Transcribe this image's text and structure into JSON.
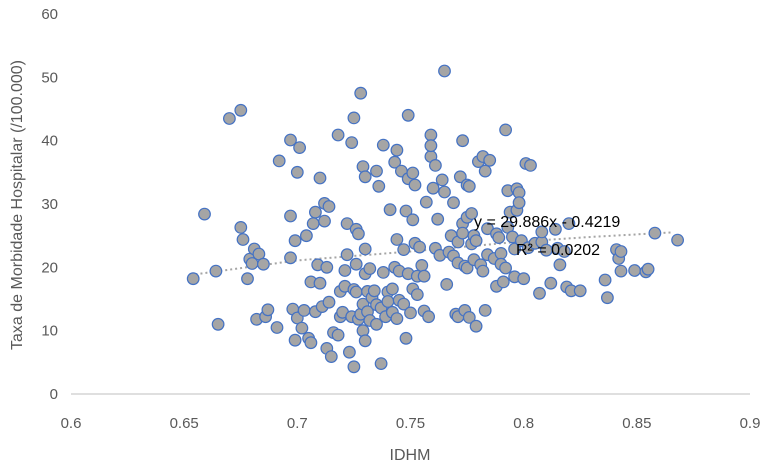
{
  "chart_data": {
    "type": "scatter",
    "xlabel": "IDHM",
    "ylabel": "Taxa de Morbidade Hospitalar (/100.000)",
    "xlim": [
      0.6,
      0.9
    ],
    "ylim": [
      0,
      60
    ],
    "x_ticks": [
      "0.6",
      "0.65",
      "0.7",
      "0.75",
      "0.8",
      "0.85",
      "0.9"
    ],
    "y_ticks": [
      "0",
      "10",
      "20",
      "30",
      "40",
      "50",
      "60"
    ],
    "grid": false,
    "legend": "none",
    "trendline": {
      "type": "polynomial-2",
      "label_equation": "y = 29.886x - 0.4219",
      "label_r2": "R² = 0.0202",
      "points": [
        [
          0.655,
          18.9
        ],
        [
          0.7,
          21.1
        ],
        [
          0.75,
          22.5
        ],
        [
          0.8,
          24.1
        ],
        [
          0.83,
          24.8
        ],
        [
          0.865,
          25.5
        ]
      ]
    },
    "colors": {
      "marker_fill": "#A5A5A5",
      "marker_edge": "#4472C4",
      "axis": "#BFBFBF",
      "text": "#595959",
      "trend": "#A5A5A5"
    },
    "points": [
      [
        0.654,
        18.2
      ],
      [
        0.659,
        28.4
      ],
      [
        0.664,
        19.4
      ],
      [
        0.665,
        11.0
      ],
      [
        0.67,
        43.5
      ],
      [
        0.675,
        44.8
      ],
      [
        0.675,
        26.3
      ],
      [
        0.676,
        24.4
      ],
      [
        0.678,
        18.2
      ],
      [
        0.679,
        21.3
      ],
      [
        0.68,
        20.6
      ],
      [
        0.681,
        22.9
      ],
      [
        0.682,
        11.8
      ],
      [
        0.683,
        22.1
      ],
      [
        0.685,
        20.5
      ],
      [
        0.686,
        12.2
      ],
      [
        0.687,
        13.3
      ],
      [
        0.691,
        10.5
      ],
      [
        0.692,
        36.8
      ],
      [
        0.697,
        40.1
      ],
      [
        0.697,
        28.1
      ],
      [
        0.697,
        21.5
      ],
      [
        0.698,
        13.4
      ],
      [
        0.699,
        24.2
      ],
      [
        0.699,
        8.5
      ],
      [
        0.7,
        35.0
      ],
      [
        0.7,
        12.0
      ],
      [
        0.701,
        38.9
      ],
      [
        0.702,
        10.4
      ],
      [
        0.703,
        13.2
      ],
      [
        0.704,
        25.0
      ],
      [
        0.705,
        8.8
      ],
      [
        0.706,
        8.1
      ],
      [
        0.706,
        17.7
      ],
      [
        0.707,
        26.9
      ],
      [
        0.708,
        28.7
      ],
      [
        0.708,
        13.0
      ],
      [
        0.709,
        20.4
      ],
      [
        0.71,
        34.1
      ],
      [
        0.71,
        17.5
      ],
      [
        0.711,
        13.8
      ],
      [
        0.712,
        30.1
      ],
      [
        0.712,
        27.3
      ],
      [
        0.713,
        20.0
      ],
      [
        0.713,
        7.2
      ],
      [
        0.714,
        29.6
      ],
      [
        0.714,
        14.5
      ],
      [
        0.715,
        5.9
      ],
      [
        0.716,
        9.7
      ],
      [
        0.718,
        40.9
      ],
      [
        0.718,
        9.3
      ],
      [
        0.719,
        12.2
      ],
      [
        0.719,
        16.2
      ],
      [
        0.72,
        12.9
      ],
      [
        0.721,
        19.5
      ],
      [
        0.721,
        17.0
      ],
      [
        0.722,
        26.9
      ],
      [
        0.722,
        22.0
      ],
      [
        0.723,
        6.6
      ],
      [
        0.724,
        39.7
      ],
      [
        0.724,
        12.2
      ],
      [
        0.725,
        43.6
      ],
      [
        0.725,
        16.5
      ],
      [
        0.725,
        4.3
      ],
      [
        0.726,
        26.0
      ],
      [
        0.726,
        20.5
      ],
      [
        0.726,
        16.1
      ],
      [
        0.727,
        25.3
      ],
      [
        0.727,
        11.8
      ],
      [
        0.728,
        47.5
      ],
      [
        0.728,
        12.6
      ],
      [
        0.729,
        35.9
      ],
      [
        0.729,
        14.2
      ],
      [
        0.729,
        10.0
      ],
      [
        0.73,
        34.3
      ],
      [
        0.73,
        22.9
      ],
      [
        0.73,
        19.0
      ],
      [
        0.73,
        8.4
      ],
      [
        0.731,
        16.2
      ],
      [
        0.731,
        13.0
      ],
      [
        0.732,
        19.8
      ],
      [
        0.732,
        11.6
      ],
      [
        0.733,
        15.2
      ],
      [
        0.734,
        16.3
      ],
      [
        0.735,
        35.2
      ],
      [
        0.735,
        14.1
      ],
      [
        0.735,
        11.0
      ],
      [
        0.736,
        32.8
      ],
      [
        0.737,
        13.6
      ],
      [
        0.737,
        4.8
      ],
      [
        0.738,
        39.3
      ],
      [
        0.738,
        19.2
      ],
      [
        0.739,
        12.2
      ],
      [
        0.74,
        16.1
      ],
      [
        0.74,
        14.6
      ],
      [
        0.741,
        29.1
      ],
      [
        0.742,
        16.6
      ],
      [
        0.742,
        12.9
      ],
      [
        0.743,
        36.6
      ],
      [
        0.743,
        20.0
      ],
      [
        0.744,
        38.5
      ],
      [
        0.744,
        24.4
      ],
      [
        0.744,
        11.9
      ],
      [
        0.745,
        19.4
      ],
      [
        0.745,
        14.8
      ],
      [
        0.746,
        35.2
      ],
      [
        0.747,
        22.8
      ],
      [
        0.747,
        14.2
      ],
      [
        0.748,
        28.9
      ],
      [
        0.748,
        8.8
      ],
      [
        0.749,
        34.0
      ],
      [
        0.749,
        44.0
      ],
      [
        0.749,
        19.0
      ],
      [
        0.75,
        12.8
      ],
      [
        0.751,
        34.9
      ],
      [
        0.751,
        27.5
      ],
      [
        0.751,
        16.6
      ],
      [
        0.752,
        33.0
      ],
      [
        0.752,
        23.8
      ],
      [
        0.753,
        18.6
      ],
      [
        0.753,
        15.7
      ],
      [
        0.754,
        23.2
      ],
      [
        0.755,
        20.3
      ],
      [
        0.756,
        18.6
      ],
      [
        0.756,
        13.1
      ],
      [
        0.757,
        30.3
      ],
      [
        0.758,
        12.2
      ],
      [
        0.759,
        37.5
      ],
      [
        0.759,
        40.9
      ],
      [
        0.759,
        39.2
      ],
      [
        0.76,
        32.5
      ],
      [
        0.761,
        36.1
      ],
      [
        0.761,
        23.0
      ],
      [
        0.762,
        27.6
      ],
      [
        0.763,
        21.9
      ],
      [
        0.764,
        33.8
      ],
      [
        0.765,
        51.0
      ],
      [
        0.765,
        31.9
      ],
      [
        0.766,
        17.3
      ],
      [
        0.767,
        22.4
      ],
      [
        0.768,
        25.0
      ],
      [
        0.769,
        30.2
      ],
      [
        0.769,
        21.8
      ],
      [
        0.77,
        12.6
      ],
      [
        0.771,
        24.0
      ],
      [
        0.771,
        20.7
      ],
      [
        0.771,
        12.2
      ],
      [
        0.772,
        34.3
      ],
      [
        0.773,
        40.0
      ],
      [
        0.773,
        26.9
      ],
      [
        0.773,
        25.4
      ],
      [
        0.774,
        13.2
      ],
      [
        0.774,
        20.2
      ],
      [
        0.775,
        33.0
      ],
      [
        0.775,
        27.9
      ],
      [
        0.775,
        19.9
      ],
      [
        0.776,
        32.8
      ],
      [
        0.776,
        12.1
      ],
      [
        0.777,
        23.7
      ],
      [
        0.777,
        28.5
      ],
      [
        0.778,
        25.0
      ],
      [
        0.778,
        21.2
      ],
      [
        0.779,
        24.2
      ],
      [
        0.779,
        10.7
      ],
      [
        0.78,
        36.7
      ],
      [
        0.781,
        20.4
      ],
      [
        0.782,
        37.5
      ],
      [
        0.782,
        19.4
      ],
      [
        0.783,
        35.2
      ],
      [
        0.783,
        13.2
      ],
      [
        0.784,
        26.1
      ],
      [
        0.784,
        22.0
      ],
      [
        0.785,
        36.9
      ],
      [
        0.787,
        21.4
      ],
      [
        0.788,
        25.3
      ],
      [
        0.788,
        17.0
      ],
      [
        0.789,
        24.7
      ],
      [
        0.79,
        22.2
      ],
      [
        0.79,
        20.5
      ],
      [
        0.791,
        17.7
      ],
      [
        0.792,
        41.7
      ],
      [
        0.792,
        19.9
      ],
      [
        0.793,
        32.1
      ],
      [
        0.793,
        26.3
      ],
      [
        0.794,
        28.7
      ],
      [
        0.795,
        24.8
      ],
      [
        0.796,
        22.9
      ],
      [
        0.796,
        18.5
      ],
      [
        0.797,
        32.4
      ],
      [
        0.797,
        29.0
      ],
      [
        0.798,
        31.8
      ],
      [
        0.798,
        30.2
      ],
      [
        0.799,
        24.2
      ],
      [
        0.8,
        18.2
      ],
      [
        0.801,
        36.4
      ],
      [
        0.802,
        23.1
      ],
      [
        0.803,
        36.1
      ],
      [
        0.805,
        23.8
      ],
      [
        0.807,
        15.9
      ],
      [
        0.808,
        24.0
      ],
      [
        0.808,
        25.6
      ],
      [
        0.81,
        22.7
      ],
      [
        0.812,
        17.5
      ],
      [
        0.814,
        26.0
      ],
      [
        0.815,
        23.0
      ],
      [
        0.816,
        20.4
      ],
      [
        0.818,
        22.5
      ],
      [
        0.819,
        16.9
      ],
      [
        0.82,
        26.9
      ],
      [
        0.821,
        16.3
      ],
      [
        0.825,
        16.3
      ],
      [
        0.836,
        18.0
      ],
      [
        0.837,
        15.2
      ],
      [
        0.841,
        22.8
      ],
      [
        0.842,
        21.4
      ],
      [
        0.843,
        19.4
      ],
      [
        0.843,
        22.5
      ],
      [
        0.849,
        19.5
      ],
      [
        0.854,
        19.3
      ],
      [
        0.855,
        19.7
      ],
      [
        0.858,
        25.4
      ],
      [
        0.868,
        24.3
      ]
    ]
  }
}
